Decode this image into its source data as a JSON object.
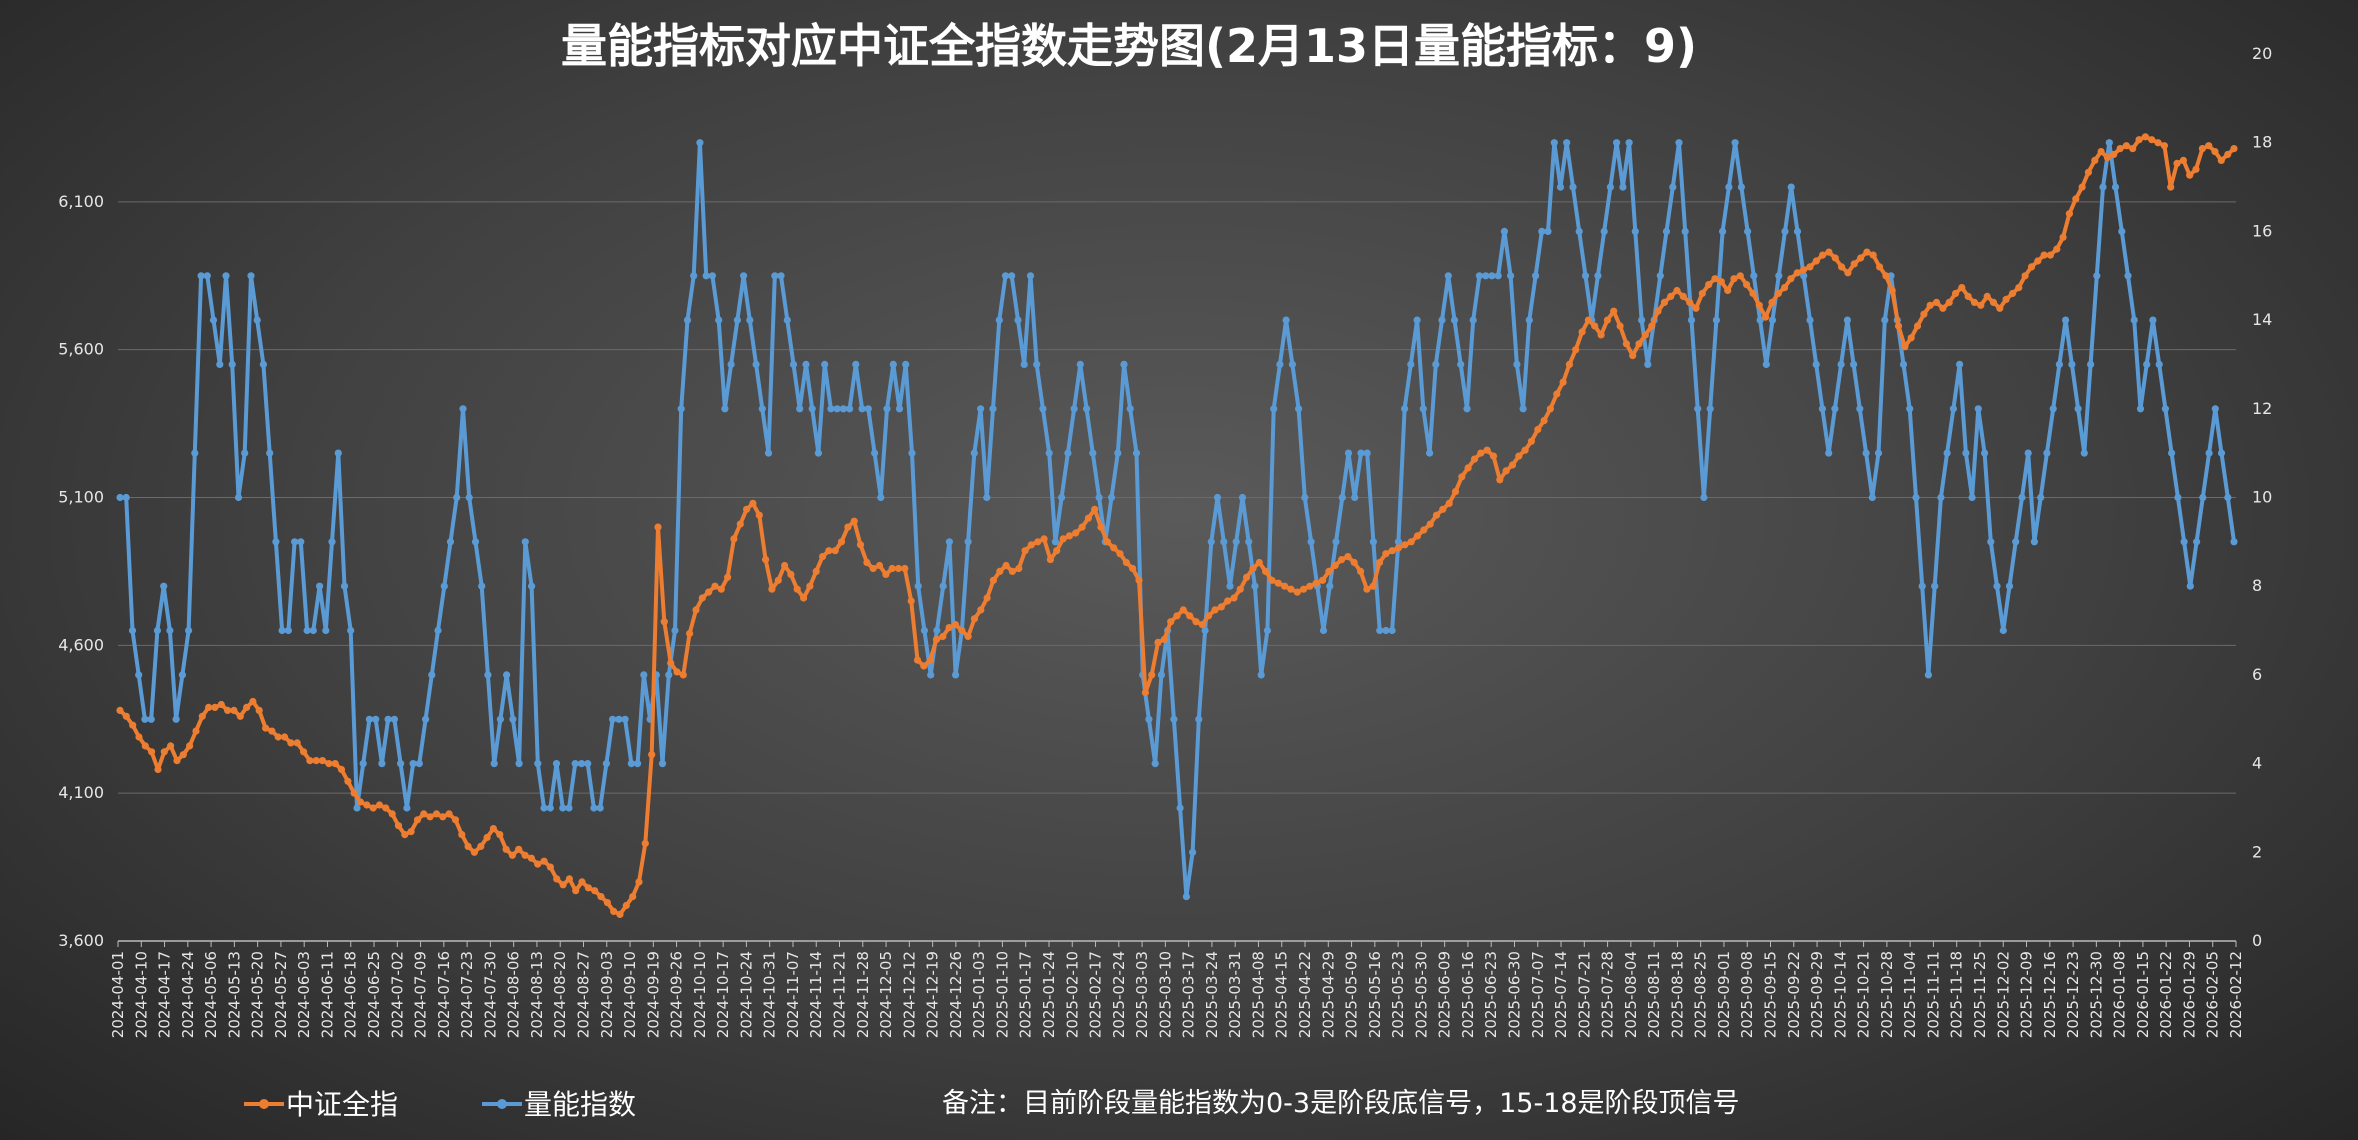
{
  "colors": {
    "index": "#ED7D31",
    "volume": "#5B9BD5",
    "grid": "#6a6a6a"
  },
  "chart_data": {
    "type": "line",
    "title": "量能指标对应中证全指数走势图(2月13日量能指标：9)",
    "note": "备注：目前阶段量能指数为0-3是阶段底信号，15-18是阶段顶信号",
    "legend_position": "bottom-left",
    "grid": true,
    "y_left": {
      "min": 3600,
      "max": 6600,
      "ticks": [
        "3,600",
        "4,100",
        "4,600",
        "5,100",
        "5,600",
        "6,100"
      ],
      "tick_values": [
        3600,
        4100,
        4600,
        5100,
        5600,
        6100
      ]
    },
    "y_right": {
      "min": 0,
      "max": 20,
      "ticks": [
        "0",
        "2",
        "4",
        "6",
        "8",
        "10",
        "12",
        "14",
        "16",
        "18",
        "20"
      ],
      "tick_values": [
        0,
        2,
        4,
        6,
        8,
        10,
        12,
        14,
        16,
        18,
        20
      ]
    },
    "x_tick_labels": [
      "2024-04-01",
      "2024-04-10",
      "2024-04-17",
      "2024-04-24",
      "2024-05-06",
      "2024-05-13",
      "2024-05-20",
      "2024-05-27",
      "2024-06-03",
      "2024-06-11",
      "2024-06-18",
      "2024-06-25",
      "2024-07-02",
      "2024-07-09",
      "2024-07-16",
      "2024-07-23",
      "2024-07-30",
      "2024-08-06",
      "2024-08-13",
      "2024-08-20",
      "2024-08-27",
      "2024-09-03",
      "2024-09-10",
      "2024-09-19",
      "2024-09-26",
      "2024-10-10",
      "2024-10-17",
      "2024-10-24",
      "2024-10-31",
      "2024-11-07",
      "2024-11-14",
      "2024-11-21",
      "2024-11-28",
      "2024-12-05",
      "2024-12-12",
      "2024-12-19",
      "2024-12-26",
      "2025-01-03",
      "2025-01-10",
      "2025-01-17",
      "2025-01-24",
      "2025-02-10",
      "2025-02-17",
      "2025-02-24",
      "2025-03-03",
      "2025-03-10",
      "2025-03-17",
      "2025-03-24",
      "2025-03-31",
      "2025-04-08",
      "2025-04-15",
      "2025-04-22",
      "2025-04-29",
      "2025-05-09",
      "2025-05-16",
      "2025-05-23",
      "2025-05-30",
      "2025-06-09",
      "2025-06-16",
      "2025-06-23",
      "2025-06-30",
      "2025-07-07",
      "2025-07-14",
      "2025-07-21",
      "2025-07-28",
      "2025-08-04",
      "2025-08-11",
      "2025-08-18",
      "2025-08-25",
      "2025-09-01",
      "2025-09-08",
      "2025-09-15",
      "2025-09-22",
      "2025-09-29",
      "2025-10-14",
      "2025-10-21",
      "2025-10-28",
      "2025-11-04",
      "2025-11-11",
      "2025-11-18",
      "2025-11-25",
      "2025-12-02",
      "2025-12-09",
      "2025-12-16",
      "2025-12-23",
      "2025-12-30",
      "2026-01-08",
      "2026-01-15",
      "2026-01-22",
      "2026-01-29",
      "2026-02-05",
      "2026-02-12"
    ],
    "series": [
      {
        "name": "中证全指",
        "axis": "left",
        "values": [
          4380,
          4360,
          4330,
          4290,
          4260,
          4240,
          4180,
          4240,
          4260,
          4210,
          4230,
          4260,
          4310,
          4360,
          4390,
          4390,
          4400,
          4380,
          4380,
          4360,
          4390,
          4410,
          4380,
          4320,
          4310,
          4290,
          4290,
          4270,
          4270,
          4240,
          4210,
          4210,
          4210,
          4200,
          4200,
          4180,
          4140,
          4100,
          4070,
          4060,
          4050,
          4060,
          4050,
          4030,
          3990,
          3960,
          3970,
          4010,
          4030,
          4020,
          4030,
          4020,
          4030,
          4010,
          3960,
          3920,
          3900,
          3920,
          3950,
          3980,
          3960,
          3910,
          3890,
          3910,
          3890,
          3880,
          3860,
          3870,
          3850,
          3810,
          3790,
          3810,
          3770,
          3800,
          3780,
          3770,
          3750,
          3730,
          3700,
          3690,
          3720,
          3750,
          3800,
          3930,
          4230,
          5000,
          4680,
          4540,
          4510,
          4500,
          4640,
          4720,
          4760,
          4780,
          4800,
          4790,
          4830,
          4960,
          5010,
          5060,
          5080,
          5040,
          4890,
          4790,
          4820,
          4870,
          4840,
          4790,
          4760,
          4800,
          4850,
          4900,
          4920,
          4920,
          4950,
          5000,
          5020,
          4940,
          4880,
          4860,
          4870,
          4840,
          4860,
          4860,
          4860,
          4750,
          4550,
          4530,
          4550,
          4620,
          4630,
          4660,
          4670,
          4650,
          4630,
          4690,
          4720,
          4760,
          4820,
          4850,
          4870,
          4850,
          4860,
          4920,
          4940,
          4950,
          4960,
          4890,
          4920,
          4960,
          4970,
          4980,
          5000,
          5030,
          5060,
          5000,
          4950,
          4930,
          4910,
          4880,
          4860,
          4820,
          4440,
          4500,
          4610,
          4620,
          4680,
          4700,
          4720,
          4700,
          4680,
          4670,
          4700,
          4720,
          4730,
          4750,
          4760,
          4790,
          4830,
          4860,
          4880,
          4850,
          4820,
          4810,
          4800,
          4790,
          4780,
          4790,
          4800,
          4810,
          4820,
          4850,
          4870,
          4890,
          4900,
          4880,
          4850,
          4790,
          4800,
          4880,
          4910,
          4920,
          4930,
          4940,
          4950,
          4970,
          4990,
          5010,
          5040,
          5060,
          5080,
          5120,
          5170,
          5200,
          5230,
          5250,
          5260,
          5240,
          5160,
          5190,
          5210,
          5240,
          5260,
          5290,
          5330,
          5360,
          5400,
          5450,
          5490,
          5550,
          5600,
          5660,
          5700,
          5680,
          5650,
          5700,
          5730,
          5680,
          5620,
          5580,
          5620,
          5650,
          5680,
          5730,
          5760,
          5780,
          5800,
          5780,
          5760,
          5740,
          5790,
          5820,
          5840,
          5830,
          5800,
          5840,
          5850,
          5820,
          5790,
          5750,
          5710,
          5760,
          5790,
          5810,
          5840,
          5860,
          5870,
          5880,
          5900,
          5920,
          5930,
          5910,
          5880,
          5860,
          5890,
          5910,
          5930,
          5920,
          5880,
          5850,
          5800,
          5680,
          5610,
          5640,
          5680,
          5720,
          5750,
          5760,
          5740,
          5760,
          5790,
          5810,
          5780,
          5760,
          5750,
          5780,
          5760,
          5740,
          5770,
          5790,
          5810,
          5850,
          5880,
          5900,
          5920,
          5920,
          5940,
          5980,
          6060,
          6110,
          6150,
          6200,
          6240,
          6270,
          6250,
          6260,
          6280,
          6290,
          6280,
          6310,
          6320,
          6310,
          6300,
          6290,
          6150,
          6230,
          6240,
          6190,
          6210,
          6280,
          6290,
          6270,
          6240,
          6260,
          6280
        ]
      },
      {
        "name": "量能指数",
        "axis": "right",
        "values": [
          10,
          10,
          7,
          6,
          5,
          5,
          7,
          8,
          7,
          5,
          6,
          7,
          11,
          15,
          15,
          14,
          13,
          15,
          13,
          10,
          11,
          15,
          14,
          13,
          11,
          9,
          7,
          7,
          9,
          9,
          7,
          7,
          8,
          7,
          9,
          11,
          8,
          7,
          3,
          4,
          5,
          5,
          4,
          5,
          5,
          4,
          3,
          4,
          4,
          5,
          6,
          7,
          8,
          9,
          10,
          12,
          10,
          9,
          8,
          6,
          4,
          5,
          6,
          5,
          4,
          9,
          8,
          4,
          3,
          3,
          4,
          3,
          3,
          4,
          4,
          4,
          3,
          3,
          4,
          5,
          5,
          5,
          4,
          4,
          6,
          5,
          6,
          4,
          6,
          7,
          12,
          14,
          15,
          18,
          15,
          15,
          14,
          12,
          13,
          14,
          15,
          14,
          13,
          12,
          11,
          15,
          15,
          14,
          13,
          12,
          13,
          12,
          11,
          13,
          12,
          12,
          12,
          12,
          13,
          12,
          12,
          11,
          10,
          12,
          13,
          12,
          13,
          11,
          8,
          7,
          6,
          7,
          8,
          9,
          6,
          7,
          9,
          11,
          12,
          10,
          12,
          14,
          15,
          15,
          14,
          13,
          15,
          13,
          12,
          11,
          9,
          10,
          11,
          12,
          13,
          12,
          11,
          10,
          9,
          10,
          11,
          13,
          12,
          11,
          6,
          5,
          4,
          6,
          7,
          5,
          3,
          1,
          2,
          5,
          7,
          9,
          10,
          9,
          8,
          9,
          10,
          9,
          8,
          6,
          7,
          12,
          13,
          14,
          13,
          12,
          10,
          9,
          8,
          7,
          8,
          9,
          10,
          11,
          10,
          11,
          11,
          9,
          7,
          7,
          7,
          9,
          12,
          13,
          14,
          12,
          11,
          13,
          14,
          15,
          14,
          13,
          12,
          14,
          15,
          15,
          15,
          15,
          16,
          15,
          13,
          12,
          14,
          15,
          16,
          16,
          18,
          17,
          18,
          17,
          16,
          15,
          14,
          15,
          16,
          17,
          18,
          17,
          18,
          16,
          14,
          13,
          14,
          15,
          16,
          17,
          18,
          16,
          14,
          12,
          10,
          12,
          14,
          16,
          17,
          18,
          17,
          16,
          15,
          14,
          13,
          14,
          15,
          16,
          17,
          16,
          15,
          14,
          13,
          12,
          11,
          12,
          13,
          14,
          13,
          12,
          11,
          10,
          11,
          14,
          15,
          14,
          13,
          12,
          10,
          8,
          6,
          8,
          10,
          11,
          12,
          13,
          11,
          10,
          12,
          11,
          9,
          8,
          7,
          8,
          9,
          10,
          11,
          9,
          10,
          11,
          12,
          13,
          14,
          13,
          12,
          11,
          13,
          15,
          17,
          18,
          17,
          16,
          15,
          14,
          12,
          13,
          14,
          13,
          12,
          11,
          10,
          9,
          8,
          9,
          10,
          11,
          12,
          11,
          10,
          9
        ]
      }
    ]
  }
}
